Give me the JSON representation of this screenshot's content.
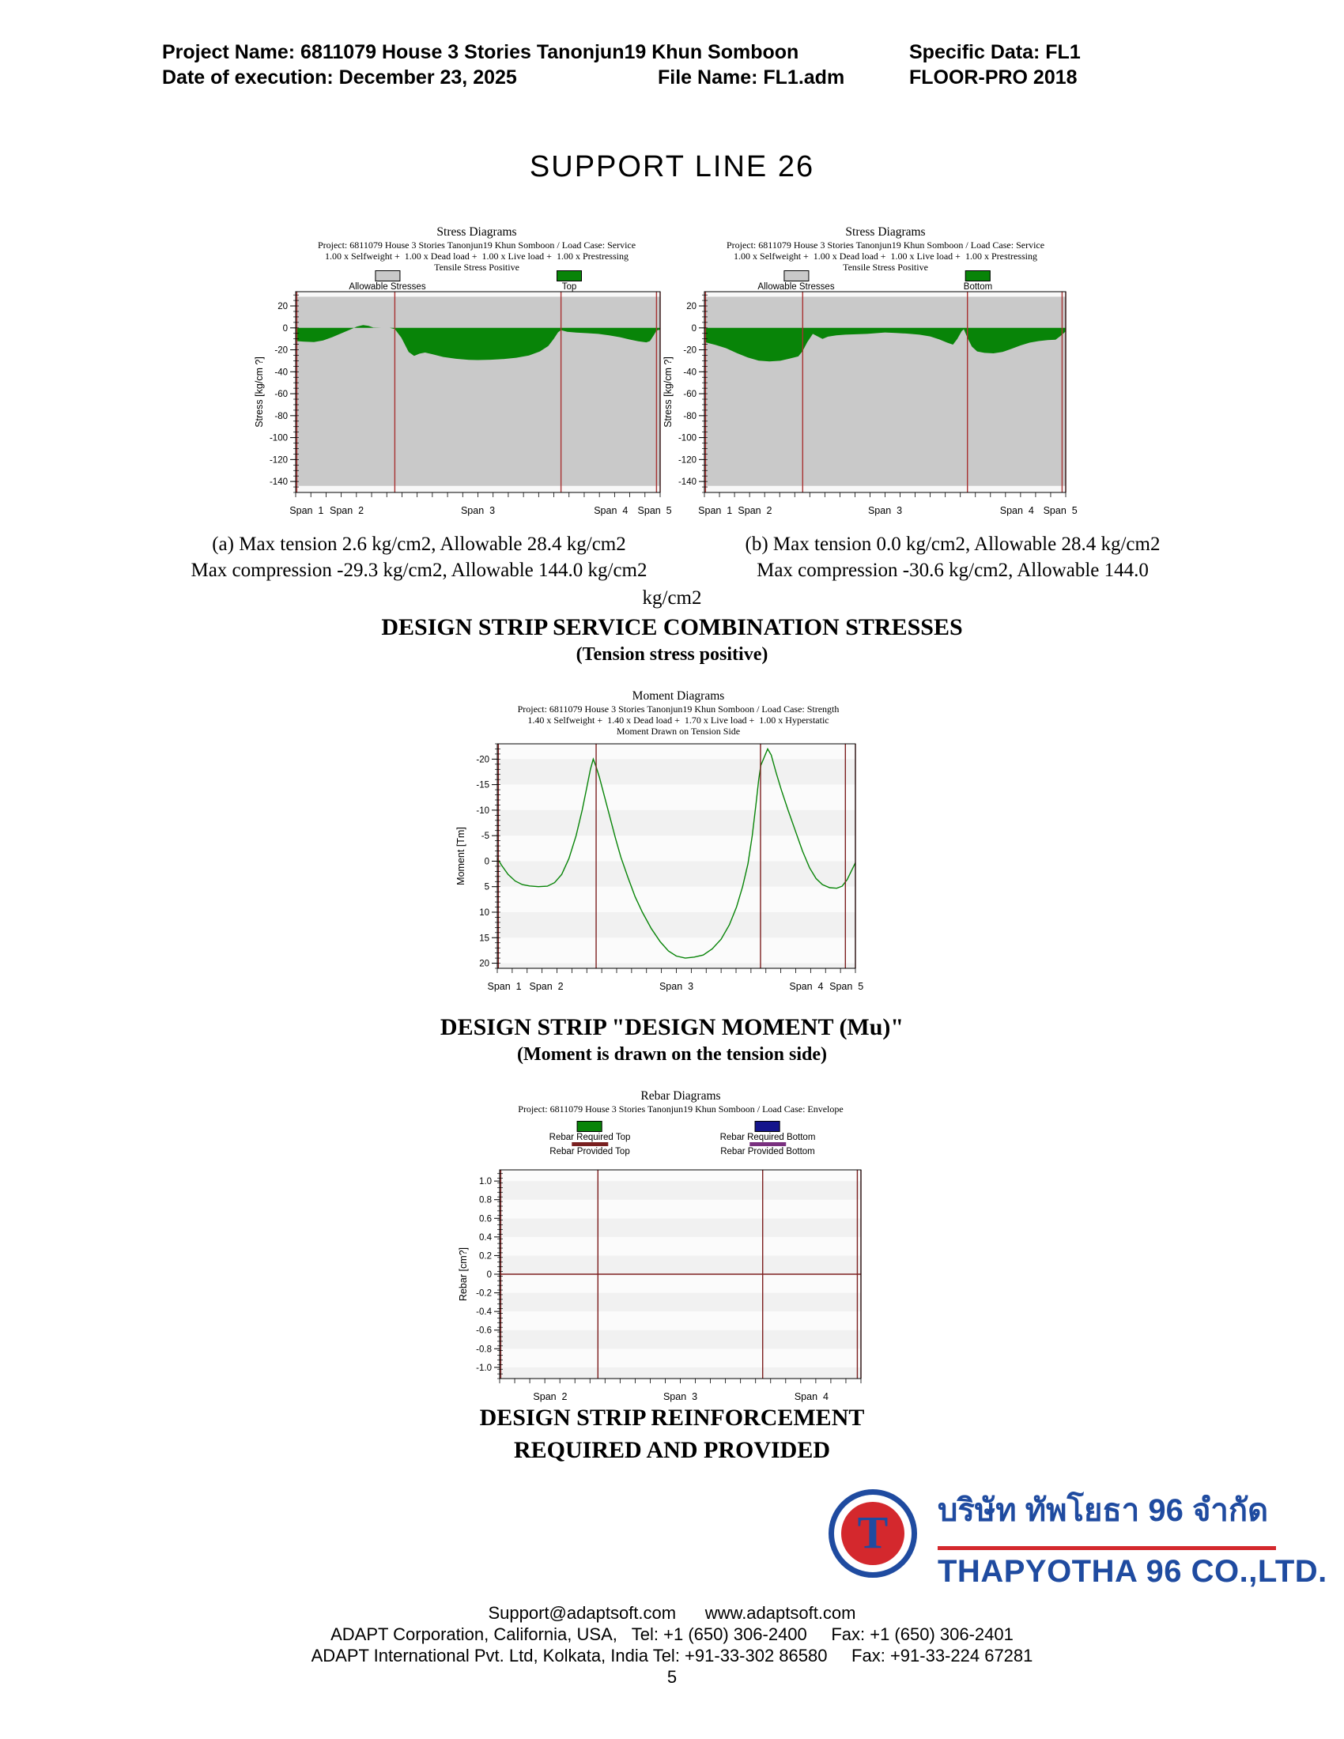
{
  "header": {
    "project": "Project Name: 6811079 House 3 Stories Tanonjun19 Khun Somboon",
    "specific_data": "Specific Data: FL1",
    "date": "Date of execution: December 23, 2025",
    "file": "File Name: FL1.adm",
    "program": "FLOOR-PRO 2018"
  },
  "page_title": "SUPPORT LINE 26",
  "stress_section": {
    "caption_a_line1": "(a) Max tension 2.6 kg/cm2, Allowable 28.4 kg/cm2",
    "caption_a_line2": "Max compression -29.3 kg/cm2, Allowable 144.0 kg/cm2",
    "caption_b_line1": "(b) Max tension 0.0 kg/cm2, Allowable 28.4 kg/cm2",
    "caption_b_line2": "Max compression -30.6 kg/cm2, Allowable 144.0",
    "caption_overflow": "kg/cm2",
    "heading": "DESIGN STRIP SERVICE COMBINATION STRESSES",
    "subheading": "(Tension stress positive)"
  },
  "moment_section": {
    "heading": "DESIGN STRIP \"DESIGN MOMENT (Mu)\"",
    "subheading": "(Moment is drawn on the tension side)"
  },
  "rebar_section": {
    "heading_line1": "DESIGN STRIP REINFORCEMENT",
    "heading_line2": "REQUIRED AND PROVIDED"
  },
  "logo": {
    "thai_name": "บริษัท ทัพโยธา 96 จำกัด",
    "english_name": "THAPYOTHA 96 CO.,LTD.",
    "monogram": "T",
    "blue": "#1f4ba0",
    "red": "#d4282d"
  },
  "footer": {
    "line1": "Support@adaptsoft.com      www.adaptsoft.com",
    "line2": "ADAPT Corporation, California, USA,   Tel: +1 (650) 306-2400     Fax: +1 (650) 306-2401",
    "line3": "ADAPT International Pvt. Ltd, Kolkata, India Tel: +91-33-302 86580     Fax: +91-33-224 67281",
    "page_number": "5"
  },
  "chart_data": [
    {
      "id": "stress-top",
      "type": "area",
      "title": "Stress Diagrams",
      "subtitles": [
        "Project: 6811079 House 3 Stories Tanonjun19 Khun Somboon / Load Case: Service",
        "1.00 x Selfweight +  1.00 x Dead load +  1.00 x Live load +  1.00 x Prestressing",
        "Tensile Stress Positive"
      ],
      "legend": [
        {
          "label": "Allowable Stresses",
          "color": "#c9c9c9",
          "shape": "box"
        },
        {
          "label": "Top",
          "color": "#088408",
          "shape": "box"
        }
      ],
      "ylabel": "Stress [kg/cm ?]",
      "ylim": [
        33,
        -150
      ],
      "yticks": [
        {
          "v": 20,
          "t": "20"
        },
        {
          "v": 0,
          "t": "0"
        },
        {
          "v": -20,
          "t": "-20"
        },
        {
          "v": -40,
          "t": "-40"
        },
        {
          "v": -60,
          "t": "-60"
        },
        {
          "v": -80,
          "t": "-80"
        },
        {
          "v": -100,
          "t": "-100"
        },
        {
          "v": -120,
          "t": "-120"
        },
        {
          "v": -140,
          "t": "-140"
        }
      ],
      "y_minor": 5,
      "band": [
        28.4,
        -144
      ],
      "bg": "#f8f8f8",
      "band_color": "#c9c9c9",
      "series_color": "#088408",
      "support_color": "#a83232",
      "supports": [
        0.003,
        0.272,
        0.728,
        0.99,
        1.0
      ],
      "spans": [
        {
          "label": "Span  1",
          "x": 0.03
        },
        {
          "label": "Span  2",
          "x": 0.14
        },
        {
          "label": "Span  3",
          "x": 0.5
        },
        {
          "label": "Span  4",
          "x": 0.865
        },
        {
          "label": "Span  5",
          "x": 0.985
        }
      ],
      "max_tension": 2.6,
      "allowable_tension": 28.4,
      "max_compression": -29.3,
      "allowable_compression": 144.0,
      "points": [
        [
          0,
          -12
        ],
        [
          0.025,
          -12.6
        ],
        [
          0.05,
          -13
        ],
        [
          0.075,
          -11.5
        ],
        [
          0.1,
          -8.5
        ],
        [
          0.125,
          -5
        ],
        [
          0.15,
          -1.5
        ],
        [
          0.168,
          1.2
        ],
        [
          0.185,
          2.6
        ],
        [
          0.2,
          1.8
        ],
        [
          0.213,
          0.3
        ],
        [
          0.235,
          0
        ],
        [
          0.258,
          0
        ],
        [
          0.272,
          -1
        ],
        [
          0.29,
          -9
        ],
        [
          0.31,
          -22
        ],
        [
          0.325,
          -25.5
        ],
        [
          0.34,
          -23.5
        ],
        [
          0.355,
          -22.5
        ],
        [
          0.375,
          -24
        ],
        [
          0.405,
          -26.5
        ],
        [
          0.44,
          -28.2
        ],
        [
          0.475,
          -29.1
        ],
        [
          0.5,
          -29.3
        ],
        [
          0.535,
          -29
        ],
        [
          0.57,
          -28.4
        ],
        [
          0.605,
          -27.2
        ],
        [
          0.64,
          -25.2
        ],
        [
          0.67,
          -21.5
        ],
        [
          0.693,
          -16.5
        ],
        [
          0.708,
          -10
        ],
        [
          0.72,
          -4
        ],
        [
          0.728,
          -2
        ],
        [
          0.745,
          -3.5
        ],
        [
          0.77,
          -4.3
        ],
        [
          0.8,
          -4.8
        ],
        [
          0.83,
          -5.5
        ],
        [
          0.86,
          -6.8
        ],
        [
          0.89,
          -8.5
        ],
        [
          0.915,
          -10.5
        ],
        [
          0.94,
          -12.2
        ],
        [
          0.962,
          -13.2
        ],
        [
          0.972,
          -12
        ],
        [
          0.982,
          -7
        ],
        [
          0.99,
          -2.5
        ],
        [
          1,
          -1.5
        ]
      ]
    },
    {
      "id": "stress-bottom",
      "type": "area",
      "title": "Stress Diagrams",
      "subtitles": [
        "Project: 6811079 House 3 Stories Tanonjun19 Khun Somboon / Load Case: Service",
        "1.00 x Selfweight +  1.00 x Dead load +  1.00 x Live load +  1.00 x Prestressing",
        "Tensile Stress Positive"
      ],
      "legend": [
        {
          "label": "Allowable Stresses",
          "color": "#c9c9c9",
          "shape": "box"
        },
        {
          "label": "Bottom",
          "color": "#088408",
          "shape": "box"
        }
      ],
      "ylabel": "Stress [kg/cm ?]",
      "ylim": [
        33,
        -150
      ],
      "yticks": [
        {
          "v": 20,
          "t": "20"
        },
        {
          "v": 0,
          "t": "0"
        },
        {
          "v": -20,
          "t": "-20"
        },
        {
          "v": -40,
          "t": "-40"
        },
        {
          "v": -60,
          "t": "-60"
        },
        {
          "v": -80,
          "t": "-80"
        },
        {
          "v": -100,
          "t": "-100"
        },
        {
          "v": -120,
          "t": "-120"
        },
        {
          "v": -140,
          "t": "-140"
        }
      ],
      "y_minor": 5,
      "band": [
        28.4,
        -144
      ],
      "bg": "#f8f8f8",
      "band_color": "#c9c9c9",
      "series_color": "#088408",
      "support_color": "#a83232",
      "supports": [
        0.003,
        0.272,
        0.728,
        0.99,
        1.0
      ],
      "spans": [
        {
          "label": "Span  1",
          "x": 0.03
        },
        {
          "label": "Span  2",
          "x": 0.14
        },
        {
          "label": "Span  3",
          "x": 0.5
        },
        {
          "label": "Span  4",
          "x": 0.865
        },
        {
          "label": "Span  5",
          "x": 0.985
        }
      ],
      "max_tension": 0.0,
      "allowable_tension": 28.4,
      "max_compression": -30.6,
      "allowable_compression": 144.0,
      "points": [
        [
          0,
          -13
        ],
        [
          0.03,
          -15.5
        ],
        [
          0.06,
          -18.5
        ],
        [
          0.09,
          -23
        ],
        [
          0.12,
          -27
        ],
        [
          0.15,
          -29.8
        ],
        [
          0.18,
          -30.6
        ],
        [
          0.21,
          -30
        ],
        [
          0.235,
          -28
        ],
        [
          0.26,
          -26
        ],
        [
          0.272,
          -21
        ],
        [
          0.285,
          -13
        ],
        [
          0.3,
          -5.5
        ],
        [
          0.312,
          -7.5
        ],
        [
          0.327,
          -10
        ],
        [
          0.342,
          -8
        ],
        [
          0.365,
          -6.8
        ],
        [
          0.39,
          -6.2
        ],
        [
          0.42,
          -5.8
        ],
        [
          0.45,
          -5.5
        ],
        [
          0.475,
          -4.8
        ],
        [
          0.5,
          -4.2
        ],
        [
          0.53,
          -4.6
        ],
        [
          0.56,
          -5.2
        ],
        [
          0.595,
          -6.2
        ],
        [
          0.625,
          -7.8
        ],
        [
          0.65,
          -10.5
        ],
        [
          0.672,
          -13.5
        ],
        [
          0.688,
          -15.3
        ],
        [
          0.7,
          -10
        ],
        [
          0.712,
          -3
        ],
        [
          0.718,
          -1.2
        ],
        [
          0.728,
          -9
        ],
        [
          0.74,
          -17
        ],
        [
          0.755,
          -21.5
        ],
        [
          0.775,
          -22.8
        ],
        [
          0.8,
          -23.2
        ],
        [
          0.825,
          -22
        ],
        [
          0.85,
          -19
        ],
        [
          0.875,
          -16
        ],
        [
          0.9,
          -13.5
        ],
        [
          0.925,
          -12
        ],
        [
          0.95,
          -11.2
        ],
        [
          0.972,
          -10.8
        ],
        [
          0.985,
          -7.5
        ],
        [
          1,
          -3.2
        ]
      ]
    },
    {
      "id": "moment",
      "type": "line",
      "title": "Moment Diagrams",
      "subtitles": [
        "Project: 6811079 House 3 Stories Tanonjun19 Khun Somboon / Load Case: Strength",
        "1.40 x Selfweight +  1.40 x Dead load +  1.70 x Live load +  1.00 x Hyperstatic",
        "Moment Drawn on Tension Side"
      ],
      "legend": [],
      "ylabel": "Moment [Tm]",
      "ylim": [
        -23,
        21
      ],
      "yticks": [
        {
          "v": -20,
          "t": "-20"
        },
        {
          "v": -15,
          "t": "-15"
        },
        {
          "v": -10,
          "t": "-10"
        },
        {
          "v": -5,
          "t": "-5"
        },
        {
          "v": 0,
          "t": "0"
        },
        {
          "v": 5,
          "t": "5"
        },
        {
          "v": 10,
          "t": "10"
        },
        {
          "v": 15,
          "t": "15"
        },
        {
          "v": 20,
          "t": "20"
        }
      ],
      "y_minor": 1,
      "stripe": 5,
      "bg": "#fbfbfb",
      "series_color": "#088408",
      "support_color": "#7d2020",
      "supports": [
        0.003,
        0.276,
        0.735,
        0.972,
        1.0
      ],
      "spans": [
        {
          "label": "Span  1",
          "x": 0.02
        },
        {
          "label": "Span  2",
          "x": 0.137
        },
        {
          "label": "Span  3",
          "x": 0.5
        },
        {
          "label": "Span  4",
          "x": 0.863
        },
        {
          "label": "Span  5",
          "x": 0.975
        }
      ],
      "points": [
        [
          0,
          -0.6
        ],
        [
          0.012,
          0.8
        ],
        [
          0.03,
          2.6
        ],
        [
          0.05,
          3.9
        ],
        [
          0.07,
          4.6
        ],
        [
          0.09,
          4.85
        ],
        [
          0.115,
          5
        ],
        [
          0.14,
          4.9
        ],
        [
          0.16,
          4.2
        ],
        [
          0.18,
          2.6
        ],
        [
          0.2,
          -0.5
        ],
        [
          0.22,
          -5
        ],
        [
          0.237,
          -10
        ],
        [
          0.25,
          -14.5
        ],
        [
          0.26,
          -18
        ],
        [
          0.268,
          -20
        ],
        [
          0.276,
          -18.5
        ],
        [
          0.285,
          -16.5
        ],
        [
          0.3,
          -12.5
        ],
        [
          0.315,
          -8.5
        ],
        [
          0.33,
          -4.5
        ],
        [
          0.345,
          -0.8
        ],
        [
          0.365,
          3.2
        ],
        [
          0.385,
          7
        ],
        [
          0.405,
          10
        ],
        [
          0.43,
          13.2
        ],
        [
          0.455,
          15.8
        ],
        [
          0.478,
          17.6
        ],
        [
          0.5,
          18.6
        ],
        [
          0.525,
          19
        ],
        [
          0.55,
          18.8
        ],
        [
          0.575,
          18.4
        ],
        [
          0.6,
          17.2
        ],
        [
          0.625,
          15.3
        ],
        [
          0.648,
          12.5
        ],
        [
          0.668,
          9
        ],
        [
          0.685,
          5
        ],
        [
          0.7,
          0.5
        ],
        [
          0.712,
          -5
        ],
        [
          0.722,
          -11
        ],
        [
          0.73,
          -16
        ],
        [
          0.736,
          -18.8
        ],
        [
          0.745,
          -20.3
        ],
        [
          0.755,
          -22
        ],
        [
          0.765,
          -20.8
        ],
        [
          0.778,
          -17.5
        ],
        [
          0.793,
          -14
        ],
        [
          0.812,
          -10
        ],
        [
          0.832,
          -6
        ],
        [
          0.852,
          -2
        ],
        [
          0.872,
          1.3
        ],
        [
          0.89,
          3.4
        ],
        [
          0.908,
          4.6
        ],
        [
          0.928,
          5.2
        ],
        [
          0.948,
          5.3
        ],
        [
          0.963,
          4.9
        ],
        [
          0.977,
          3.6
        ],
        [
          0.988,
          2
        ],
        [
          1,
          0.3
        ]
      ]
    },
    {
      "id": "rebar",
      "type": "empty",
      "title": "Rebar Diagrams",
      "subtitles": [
        "Project: 6811079 House 3 Stories Tanonjun19 Khun Somboon / Load Case: Envelope"
      ],
      "legend": [
        {
          "label": "Rebar Required Top",
          "color": "#088408",
          "shape": "box"
        },
        {
          "label": "Rebar Required Bottom",
          "color": "#14148c",
          "shape": "box"
        },
        {
          "label": "Rebar Provided Top",
          "color": "#7a2020",
          "shape": "line"
        },
        {
          "label": "Rebar Provided Bottom",
          "color": "#7a3080",
          "shape": "line"
        }
      ],
      "ylabel": "Rebar [cm?]",
      "ylim": [
        1.12,
        -1.12
      ],
      "yticks": [
        {
          "v": 1.0,
          "t": "1.0"
        },
        {
          "v": 0.8,
          "t": "0.8"
        },
        {
          "v": 0.6,
          "t": "0.6"
        },
        {
          "v": 0.4,
          "t": "0.4"
        },
        {
          "v": 0.2,
          "t": "0.2"
        },
        {
          "v": 0,
          "t": "0"
        },
        {
          "v": -0.2,
          "t": "-0.2"
        },
        {
          "v": -0.4,
          "t": "-0.4"
        },
        {
          "v": -0.6,
          "t": "-0.6"
        },
        {
          "v": -0.8,
          "t": "-0.8"
        },
        {
          "v": -1.0,
          "t": "-1.0"
        }
      ],
      "y_minor": 0.05,
      "stripe": 0.2,
      "bg": "#fbfbfb",
      "zero_line": true,
      "series_color": "#088408",
      "support_color": "#7d2020",
      "supports": [
        0.003,
        0.272,
        0.728,
        0.99,
        1.0
      ],
      "spans": [
        {
          "label": "Span  2",
          "x": 0.14
        },
        {
          "label": "Span  3",
          "x": 0.5
        },
        {
          "label": "Span  4",
          "x": 0.863
        }
      ],
      "points": []
    }
  ]
}
